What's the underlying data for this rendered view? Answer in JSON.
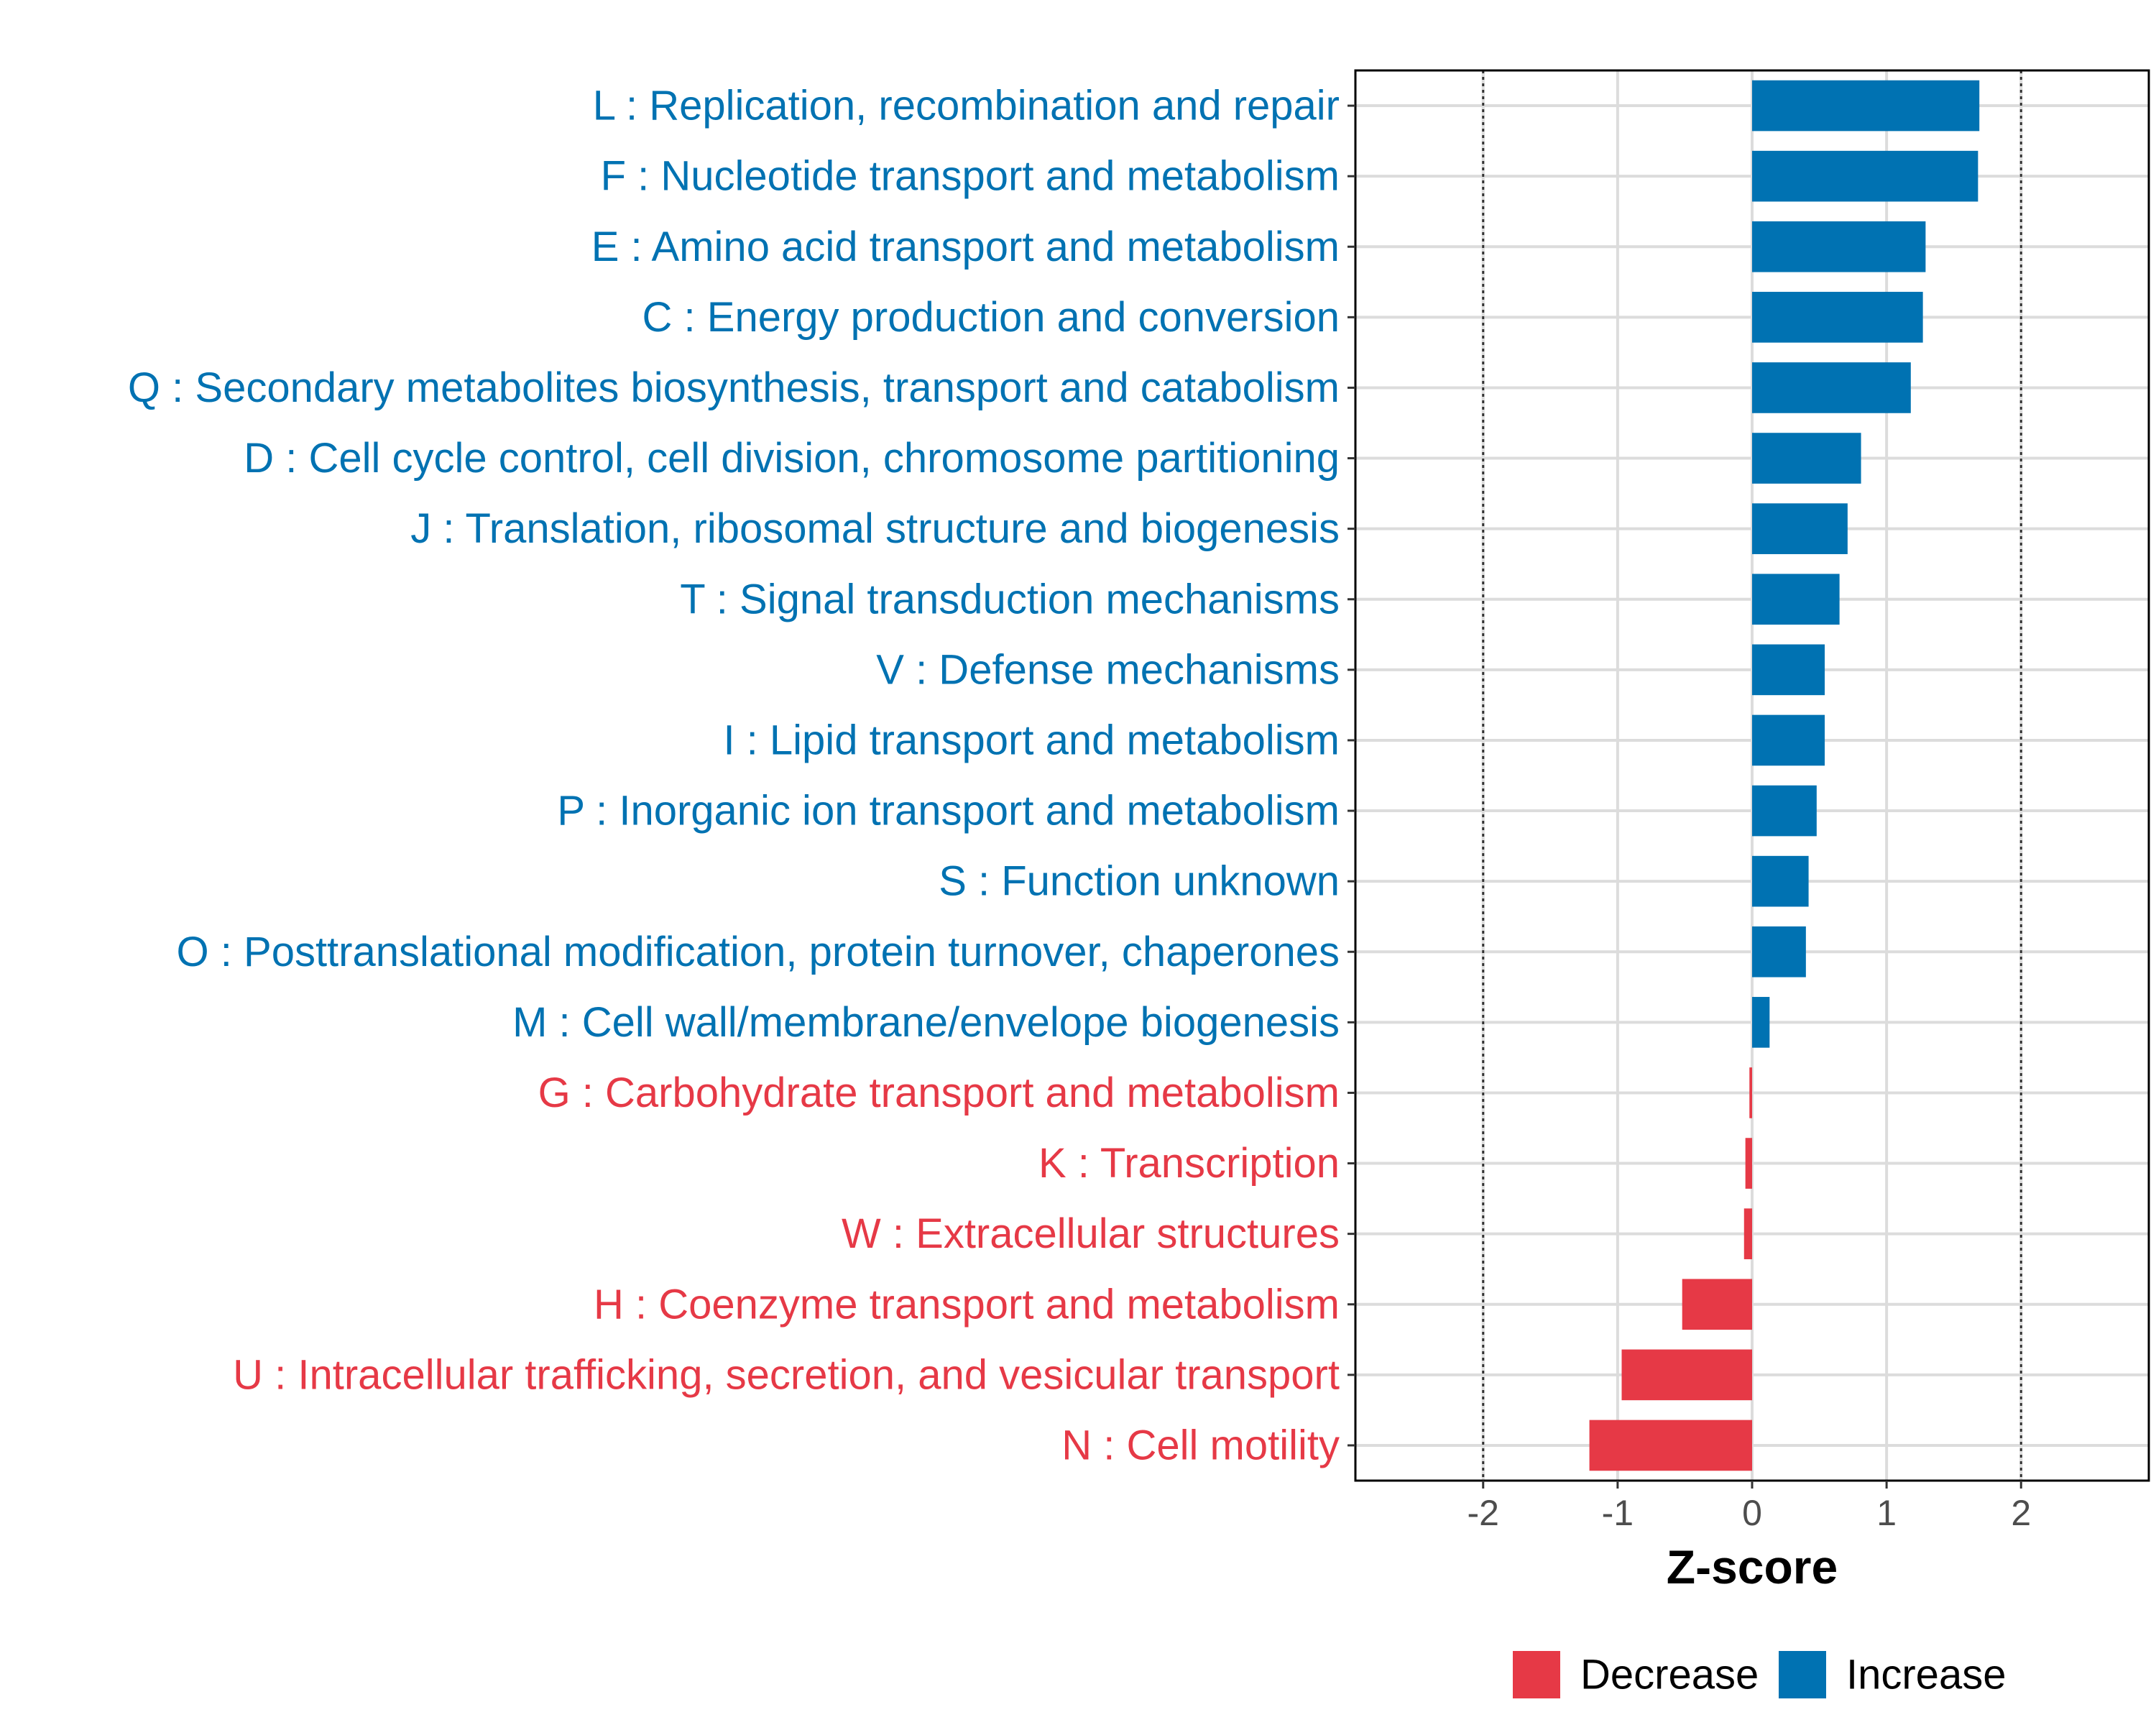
{
  "chart_data": {
    "type": "bar",
    "orientation": "horizontal",
    "xlabel": "Z-score",
    "xlim": [
      -2.95,
      2.95
    ],
    "xticks": [
      -2,
      -1,
      0,
      1,
      2
    ],
    "xtick_labels": [
      "-2",
      "-1",
      "0",
      "1",
      "2"
    ],
    "reference_lines": [
      -2,
      2
    ],
    "colors": {
      "Decrease": "#e63946",
      "Increase": "#0072b2"
    },
    "legend": {
      "position": "bottom",
      "entries": [
        {
          "label": "Decrease",
          "color": "#e63946"
        },
        {
          "label": "Increase",
          "color": "#0072b2"
        }
      ]
    },
    "categories": [
      {
        "label": "L : Replication, recombination and repair",
        "value": 1.69,
        "direction": "Increase"
      },
      {
        "label": "F : Nucleotide transport and metabolism",
        "value": 1.68,
        "direction": "Increase"
      },
      {
        "label": "E : Amino acid transport and metabolism",
        "value": 1.29,
        "direction": "Increase"
      },
      {
        "label": "C : Energy production and conversion",
        "value": 1.27,
        "direction": "Increase"
      },
      {
        "label": "Q : Secondary metabolites biosynthesis, transport and catabolism",
        "value": 1.18,
        "direction": "Increase"
      },
      {
        "label": "D : Cell cycle control, cell division, chromosome partitioning",
        "value": 0.81,
        "direction": "Increase"
      },
      {
        "label": "J : Translation, ribosomal structure and biogenesis",
        "value": 0.71,
        "direction": "Increase"
      },
      {
        "label": "T : Signal transduction mechanisms",
        "value": 0.65,
        "direction": "Increase"
      },
      {
        "label": "V : Defense mechanisms",
        "value": 0.54,
        "direction": "Increase"
      },
      {
        "label": "I : Lipid transport and metabolism",
        "value": 0.54,
        "direction": "Increase"
      },
      {
        "label": "P : Inorganic ion transport and metabolism",
        "value": 0.48,
        "direction": "Increase"
      },
      {
        "label": "S : Function unknown",
        "value": 0.42,
        "direction": "Increase"
      },
      {
        "label": "O : Posttranslational modification, protein turnover, chaperones",
        "value": 0.4,
        "direction": "Increase"
      },
      {
        "label": "M : Cell wall/membrane/envelope biogenesis",
        "value": 0.13,
        "direction": "Increase"
      },
      {
        "label": "G : Carbohydrate transport and metabolism",
        "value": -0.02,
        "direction": "Decrease"
      },
      {
        "label": "K : Transcription",
        "value": -0.05,
        "direction": "Decrease"
      },
      {
        "label": "W : Extracellular structures",
        "value": -0.06,
        "direction": "Decrease"
      },
      {
        "label": "H : Coenzyme transport and metabolism",
        "value": -0.52,
        "direction": "Decrease"
      },
      {
        "label": "U : Intracellular trafficking, secretion, and vesicular transport",
        "value": -0.97,
        "direction": "Decrease"
      },
      {
        "label": "N : Cell motility",
        "value": -1.21,
        "direction": "Decrease"
      }
    ]
  }
}
